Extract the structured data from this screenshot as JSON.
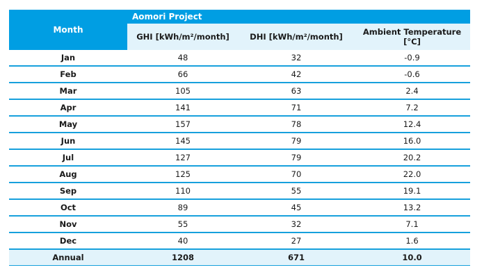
{
  "table": {
    "month_header": "Month",
    "project_header": "Aomori Project",
    "columns": [
      "GHI [kWh/m²/month]",
      "DHI [kWh/m²/month]",
      "Ambient Temperature [°C]"
    ],
    "rows": [
      {
        "month": "Jan",
        "ghi": "48",
        "dhi": "32",
        "temp": "-0.9"
      },
      {
        "month": "Feb",
        "ghi": "66",
        "dhi": "42",
        "temp": "-0.6"
      },
      {
        "month": "Mar",
        "ghi": "105",
        "dhi": "63",
        "temp": "2.4"
      },
      {
        "month": "Apr",
        "ghi": "141",
        "dhi": "71",
        "temp": "7.2"
      },
      {
        "month": "May",
        "ghi": "157",
        "dhi": "78",
        "temp": "12.4"
      },
      {
        "month": "Jun",
        "ghi": "145",
        "dhi": "79",
        "temp": "16.0"
      },
      {
        "month": "Jul",
        "ghi": "127",
        "dhi": "79",
        "temp": "20.2"
      },
      {
        "month": "Aug",
        "ghi": "125",
        "dhi": "70",
        "temp": "22.0"
      },
      {
        "month": "Sep",
        "ghi": "110",
        "dhi": "55",
        "temp": "19.1"
      },
      {
        "month": "Oct",
        "ghi": "89",
        "dhi": "45",
        "temp": "13.2"
      },
      {
        "month": "Nov",
        "ghi": "55",
        "dhi": "32",
        "temp": "7.1"
      },
      {
        "month": "Dec",
        "ghi": "40",
        "dhi": "27",
        "temp": "1.6"
      }
    ],
    "annual": {
      "month": "Annual",
      "ghi": "1208",
      "dhi": "671",
      "temp": "10.0"
    }
  },
  "colors": {
    "header_blue": "#009ee3",
    "light_blue": "#e2f3fb",
    "rule_blue": "#16a0dc"
  }
}
